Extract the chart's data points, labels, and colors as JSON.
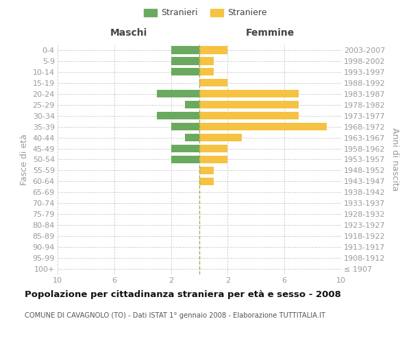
{
  "age_groups": [
    "100+",
    "95-99",
    "90-94",
    "85-89",
    "80-84",
    "75-79",
    "70-74",
    "65-69",
    "60-64",
    "55-59",
    "50-54",
    "45-49",
    "40-44",
    "35-39",
    "30-34",
    "25-29",
    "20-24",
    "15-19",
    "10-14",
    "5-9",
    "0-4"
  ],
  "birth_years": [
    "≤ 1907",
    "1908-1912",
    "1913-1917",
    "1918-1922",
    "1923-1927",
    "1928-1932",
    "1933-1937",
    "1938-1942",
    "1943-1947",
    "1948-1952",
    "1953-1957",
    "1958-1962",
    "1963-1967",
    "1968-1972",
    "1973-1977",
    "1978-1982",
    "1983-1987",
    "1988-1992",
    "1993-1997",
    "1998-2002",
    "2003-2007"
  ],
  "males": [
    0,
    0,
    0,
    0,
    0,
    0,
    0,
    0,
    0,
    0,
    2,
    2,
    1,
    2,
    3,
    1,
    3,
    0,
    2,
    2,
    2
  ],
  "females": [
    0,
    0,
    0,
    0,
    0,
    0,
    0,
    0,
    1,
    1,
    2,
    2,
    3,
    9,
    7,
    7,
    7,
    2,
    1,
    1,
    2
  ],
  "male_color": "#6aaa5e",
  "female_color": "#f5c242",
  "male_label": "Stranieri",
  "female_label": "Straniere",
  "xlim": 10,
  "xlabel_left": "Maschi",
  "xlabel_right": "Femmine",
  "ylabel_left": "Fasce di età",
  "ylabel_right": "Anni di nascita",
  "title": "Popolazione per cittadinanza straniera per età e sesso - 2008",
  "subtitle": "COMUNE DI CAVAGNOLO (TO) - Dati ISTAT 1° gennaio 2008 - Elaborazione TUTTITALIA.IT",
  "background_color": "#ffffff",
  "grid_color": "#cccccc",
  "text_color": "#999999",
  "title_color": "#111111",
  "subtitle_color": "#555555",
  "header_color": "#444444",
  "centerline_color": "#aaaa55"
}
